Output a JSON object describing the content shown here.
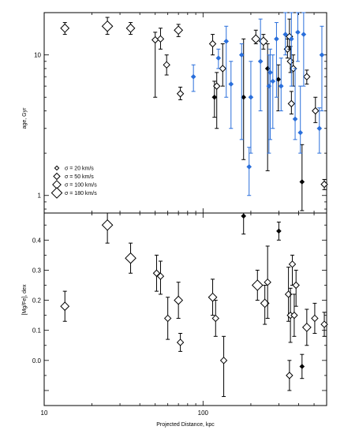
{
  "colors": {
    "black": "#000000",
    "blue": "#2a6fdb"
  },
  "chart_data": [
    {
      "type": "scatter",
      "panel": "top",
      "ylabel": "age, Gyr",
      "xlabel": "",
      "xscale": "log",
      "yscale": "log",
      "xlim": [
        10,
        600
      ],
      "ylim": [
        0.75,
        20
      ],
      "xticks": [
        10,
        100
      ],
      "xtick_labels": [
        "",
        ""
      ],
      "yticks": [
        1,
        10
      ],
      "ytick_labels": [
        "1",
        "10"
      ],
      "legend": {
        "placement": "bottom-left",
        "entries": [
          {
            "label": "σ = 20 km/s",
            "size": 2
          },
          {
            "label": "σ = 50 km/s",
            "size": 3
          },
          {
            "label": "σ = 100 km/s",
            "size": 4
          },
          {
            "label": "σ = 180 km/s",
            "size": 5
          }
        ]
      },
      "series": [
        {
          "color": "black",
          "points": [
            {
              "x": 13.5,
              "y": 15.5,
              "lo": 14.0,
              "hi": 17.0,
              "s": 4
            },
            {
              "x": 25,
              "y": 16.0,
              "lo": 14.0,
              "hi": 18.5,
              "s": 5
            },
            {
              "x": 35,
              "y": 15.5,
              "lo": 14.0,
              "hi": 17.0,
              "s": 4
            },
            {
              "x": 50,
              "y": 12.8,
              "lo": 5.0,
              "hi": 14.5,
              "s": 3
            },
            {
              "x": 54,
              "y": 13.0,
              "lo": 11.0,
              "hi": 15.5,
              "s": 3
            },
            {
              "x": 59,
              "y": 8.5,
              "lo": 7.2,
              "hi": 10.0,
              "s": 3
            },
            {
              "x": 70,
              "y": 15.0,
              "lo": 13.5,
              "hi": 16.5,
              "s": 4
            },
            {
              "x": 72,
              "y": 5.3,
              "lo": 4.8,
              "hi": 5.9,
              "s": 3
            },
            {
              "x": 115,
              "y": 12.0,
              "lo": 10.0,
              "hi": 14.0,
              "s": 3
            },
            {
              "x": 118,
              "y": 5.0,
              "lo": 3.6,
              "hi": 6.5,
              "s": 2
            },
            {
              "x": 122,
              "y": 6.0,
              "lo": 3.0,
              "hi": 7.5,
              "s": 3
            },
            {
              "x": 133,
              "y": 8.0,
              "lo": 6.0,
              "hi": 12.0,
              "s": 3
            },
            {
              "x": 180,
              "y": 5.0,
              "lo": 1.8,
              "hi": 13.0,
              "s": 2
            },
            {
              "x": 215,
              "y": 13.0,
              "lo": 12.0,
              "hi": 15.0,
              "s": 4
            },
            {
              "x": 240,
              "y": 12.5,
              "lo": 11.0,
              "hi": 14.0,
              "s": 4
            },
            {
              "x": 255,
              "y": 8.0,
              "lo": 1.5,
              "hi": 12.0,
              "s": 2
            },
            {
              "x": 298,
              "y": 6.7,
              "lo": 4.0,
              "hi": 8.5,
              "s": 2
            },
            {
              "x": 340,
              "y": 11.0,
              "lo": 9.5,
              "hi": 13.0,
              "s": 3
            },
            {
              "x": 350,
              "y": 13.5,
              "lo": 11.0,
              "hi": 18.0,
              "s": 3
            },
            {
              "x": 355,
              "y": 9.0,
              "lo": 7.5,
              "hi": 11.5,
              "s": 3
            },
            {
              "x": 360,
              "y": 4.5,
              "lo": 3.8,
              "hi": 5.5,
              "s": 3
            },
            {
              "x": 370,
              "y": 8.0,
              "lo": 6.0,
              "hi": 10.0,
              "s": 3
            },
            {
              "x": 420,
              "y": 1.25,
              "lo": 0.78,
              "hi": 2.3,
              "s": 2
            },
            {
              "x": 450,
              "y": 7.0,
              "lo": 6.2,
              "hi": 7.8,
              "s": 3
            },
            {
              "x": 510,
              "y": 4.0,
              "lo": 3.3,
              "hi": 5.0,
              "s": 3
            },
            {
              "x": 580,
              "y": 1.2,
              "lo": 1.1,
              "hi": 1.3,
              "s": 3
            }
          ]
        },
        {
          "color": "blue",
          "points": [
            {
              "x": 87,
              "y": 7.0,
              "lo": 5.5,
              "hi": 8.5,
              "s": 2
            },
            {
              "x": 125,
              "y": 9.5,
              "lo": 8.0,
              "hi": 11.0,
              "s": 2
            },
            {
              "x": 140,
              "y": 12.5,
              "lo": 5.0,
              "hi": 16.0,
              "s": 2
            },
            {
              "x": 150,
              "y": 6.2,
              "lo": 3.0,
              "hi": 9.0,
              "s": 2
            },
            {
              "x": 175,
              "y": 10.0,
              "lo": 2.5,
              "hi": 12.0,
              "s": 2
            },
            {
              "x": 195,
              "y": 1.6,
              "lo": 1.0,
              "hi": 2.2,
              "s": 2
            },
            {
              "x": 200,
              "y": 5.0,
              "lo": 2.0,
              "hi": 9.0,
              "s": 2
            },
            {
              "x": 230,
              "y": 9.0,
              "lo": 4.0,
              "hi": 18.0,
              "s": 2
            },
            {
              "x": 260,
              "y": 6.0,
              "lo": 2.0,
              "hi": 10.0,
              "s": 2
            },
            {
              "x": 265,
              "y": 7.5,
              "lo": 2.5,
              "hi": 11.0,
              "s": 2
            },
            {
              "x": 275,
              "y": 6.5,
              "lo": 3.0,
              "hi": 10.0,
              "s": 2
            },
            {
              "x": 290,
              "y": 13.0,
              "lo": 5.0,
              "hi": 17.0,
              "s": 2
            },
            {
              "x": 310,
              "y": 6.0,
              "lo": 4.0,
              "hi": 9.5,
              "s": 2
            },
            {
              "x": 330,
              "y": 14.0,
              "lo": 10.0,
              "hi": 20.0,
              "s": 2
            },
            {
              "x": 360,
              "y": 13.0,
              "lo": 6.0,
              "hi": 20.0,
              "s": 2
            },
            {
              "x": 380,
              "y": 3.5,
              "lo": 2.5,
              "hi": 8.0,
              "s": 2
            },
            {
              "x": 395,
              "y": 14.5,
              "lo": 9.0,
              "hi": 20.0,
              "s": 2
            },
            {
              "x": 410,
              "y": 2.8,
              "lo": 2.0,
              "hi": 6.0,
              "s": 2
            },
            {
              "x": 430,
              "y": 14.0,
              "lo": 6.0,
              "hi": 20.0,
              "s": 2
            },
            {
              "x": 540,
              "y": 3.0,
              "lo": 2.0,
              "hi": 4.2,
              "s": 2
            },
            {
              "x": 560,
              "y": 10.0,
              "lo": 4.0,
              "hi": 16.0,
              "s": 2
            }
          ]
        }
      ]
    },
    {
      "type": "scatter",
      "panel": "bottom",
      "ylabel": "[Mg/Fe], dex",
      "xlabel": "Projected Distance, kpc",
      "xscale": "log",
      "xlim": [
        10,
        600
      ],
      "ylim": [
        -0.15,
        0.49
      ],
      "xticks": [
        10,
        100
      ],
      "xtick_labels": [
        "10",
        "100"
      ],
      "yticks": [
        0.0,
        0.1,
        0.2,
        0.3,
        0.4
      ],
      "ytick_labels": [
        "0.0",
        "0.1",
        "0.2",
        "0.3",
        "0.4"
      ],
      "series": [
        {
          "color": "black",
          "points": [
            {
              "x": 13.5,
              "y": 0.18,
              "lo": 0.13,
              "hi": 0.23,
              "s": 4
            },
            {
              "x": 25,
              "y": 0.45,
              "lo": 0.39,
              "hi": 0.51,
              "s": 5
            },
            {
              "x": 35,
              "y": 0.34,
              "lo": 0.29,
              "hi": 0.39,
              "s": 5
            },
            {
              "x": 51,
              "y": 0.29,
              "lo": 0.23,
              "hi": 0.35,
              "s": 3
            },
            {
              "x": 54,
              "y": 0.28,
              "lo": 0.22,
              "hi": 0.33,
              "s": 3
            },
            {
              "x": 60,
              "y": 0.14,
              "lo": 0.07,
              "hi": 0.21,
              "s": 3
            },
            {
              "x": 70,
              "y": 0.2,
              "lo": 0.14,
              "hi": 0.26,
              "s": 4
            },
            {
              "x": 72,
              "y": 0.06,
              "lo": 0.03,
              "hi": 0.09,
              "s": 3
            },
            {
              "x": 115,
              "y": 0.21,
              "lo": 0.15,
              "hi": 0.27,
              "s": 4
            },
            {
              "x": 120,
              "y": 0.14,
              "lo": 0.08,
              "hi": 0.2,
              "s": 3
            },
            {
              "x": 135,
              "y": 0.0,
              "lo": -0.12,
              "hi": 0.08,
              "s": 3
            },
            {
              "x": 180,
              "y": 0.48,
              "lo": 0.42,
              "hi": 0.52,
              "s": 2
            },
            {
              "x": 220,
              "y": 0.25,
              "lo": 0.2,
              "hi": 0.3,
              "s": 5
            },
            {
              "x": 245,
              "y": 0.19,
              "lo": 0.12,
              "hi": 0.25,
              "s": 4
            },
            {
              "x": 255,
              "y": 0.26,
              "lo": 0.14,
              "hi": 0.38,
              "s": 3
            },
            {
              "x": 300,
              "y": 0.43,
              "lo": 0.4,
              "hi": 0.46,
              "s": 2
            },
            {
              "x": 345,
              "y": 0.22,
              "lo": 0.13,
              "hi": 0.31,
              "s": 3
            },
            {
              "x": 350,
              "y": -0.05,
              "lo": -0.1,
              "hi": 0.0,
              "s": 3
            },
            {
              "x": 355,
              "y": 0.15,
              "lo": 0.06,
              "hi": 0.24,
              "s": 3
            },
            {
              "x": 365,
              "y": 0.32,
              "lo": 0.25,
              "hi": 0.35,
              "s": 3
            },
            {
              "x": 375,
              "y": 0.15,
              "lo": 0.08,
              "hi": 0.22,
              "s": 3
            },
            {
              "x": 385,
              "y": 0.25,
              "lo": 0.18,
              "hi": 0.3,
              "s": 3
            },
            {
              "x": 420,
              "y": -0.02,
              "lo": -0.06,
              "hi": 0.02,
              "s": 2
            },
            {
              "x": 450,
              "y": 0.11,
              "lo": 0.05,
              "hi": 0.17,
              "s": 4
            },
            {
              "x": 505,
              "y": 0.14,
              "lo": 0.09,
              "hi": 0.19,
              "s": 3
            },
            {
              "x": 580,
              "y": 0.12,
              "lo": 0.08,
              "hi": 0.16,
              "s": 3
            }
          ]
        }
      ]
    }
  ]
}
